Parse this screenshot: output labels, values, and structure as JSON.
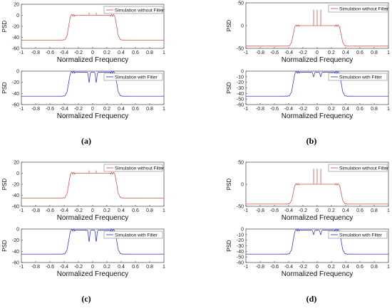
{
  "figure": {
    "captions": [
      "(a)",
      "(b)",
      "(c)",
      "(d)"
    ]
  },
  "chart_data": [
    {
      "panel": "a-top",
      "type": "line",
      "xlabel": "Normalized Frequency",
      "ylabel": "PSD",
      "xlim": [
        -1,
        1
      ],
      "ylim": [
        -60,
        20
      ],
      "xticks": [
        "-1",
        "-0.8",
        "-0.6",
        "-0.4",
        "-0.2",
        "0",
        "0.2",
        "0.4",
        "0.6",
        "0.8",
        "1"
      ],
      "yticks": [
        "20",
        "0",
        "-20",
        "-40",
        "-60"
      ],
      "legend": "top-right",
      "series": [
        {
          "name": "Simulation without Filter",
          "color": "#d9534f",
          "floor": -45,
          "plateau": 0,
          "edge": 0.3,
          "notch": false,
          "tones": [
            -0.05,
            0.05
          ],
          "tone_peak": 5
        }
      ]
    },
    {
      "panel": "a-bottom",
      "type": "line",
      "xlabel": "Normalized Frequency",
      "ylabel": "PSD",
      "xlim": [
        -1,
        1
      ],
      "ylim": [
        -60,
        0
      ],
      "xticks": [
        "-1",
        "-0.8",
        "-0.6",
        "-0.4",
        "-0.2",
        "0",
        "0.2",
        "0.4",
        "0.6",
        "0.8",
        "1"
      ],
      "yticks": [
        "0",
        "-20",
        "-40",
        "-60"
      ],
      "legend": "top-right",
      "series": [
        {
          "name": "Simulation with Filter",
          "color": "#3a3ad6",
          "floor": -45,
          "plateau": -2,
          "edge": 0.3,
          "notch": true,
          "notch_depth": -20,
          "tones": [],
          "tone_peak": 0
        }
      ]
    },
    {
      "panel": "b-top",
      "type": "line",
      "xlabel": "Normalized Frequency",
      "ylabel": "PSD",
      "xlim": [
        -1,
        1
      ],
      "ylim": [
        -50,
        50
      ],
      "xticks": [
        "-1",
        "-0.8",
        "-0.6",
        "-0.4",
        "-0.2",
        "0",
        "0.2",
        "0.4",
        "0.6",
        "0.8",
        "1"
      ],
      "yticks": [
        "50",
        "0",
        "-50"
      ],
      "legend": "top-right",
      "series": [
        {
          "name": "Simulation without Filter",
          "color": "#d9534f",
          "floor": -45,
          "plateau": 0,
          "edge": 0.3,
          "notch": false,
          "tones": [
            -0.05,
            0,
            0.05
          ],
          "tone_peak": 35
        }
      ]
    },
    {
      "panel": "b-bottom",
      "type": "line",
      "xlabel": "Normalized Frequency",
      "ylabel": "PSD",
      "xlim": [
        -1,
        1
      ],
      "ylim": [
        -60,
        0
      ],
      "xticks": [
        "-1",
        "-0.8",
        "-0.6",
        "-0.4",
        "-0.2",
        "0",
        "0.2",
        "0.4",
        "0.6",
        "0.8",
        "1"
      ],
      "yticks": [
        "0",
        "-10",
        "-20",
        "-30",
        "-40",
        "-50",
        "-60"
      ],
      "legend": "top-right",
      "series": [
        {
          "name": "Simulation with Filter",
          "color": "#3a3ad6",
          "floor": -45,
          "plateau": -2,
          "edge": 0.3,
          "notch": true,
          "notch_depth": -10,
          "tones": [],
          "tone_peak": 0
        }
      ]
    },
    {
      "panel": "c-top",
      "type": "line",
      "xlabel": "Normalized Frequency",
      "ylabel": "PSD",
      "xlim": [
        -1,
        1
      ],
      "ylim": [
        -60,
        20
      ],
      "xticks": [
        "-1",
        "-0.8",
        "-0.6",
        "-0.4",
        "-0.2",
        "0",
        "0.2",
        "0.4",
        "0.6",
        "0.8",
        "1"
      ],
      "yticks": [
        "20",
        "0",
        "-20",
        "-40",
        "-60"
      ],
      "legend": "top-right",
      "series": [
        {
          "name": "Simulation without Filter",
          "color": "#d9534f",
          "floor": -45,
          "plateau": 0,
          "edge": 0.3,
          "notch": false,
          "tones": [
            -0.05,
            0.05
          ],
          "tone_peak": 5
        }
      ]
    },
    {
      "panel": "c-bottom",
      "type": "line",
      "xlabel": "Normalized Frequency",
      "ylabel": "PSD",
      "xlim": [
        -1,
        1
      ],
      "ylim": [
        -60,
        0
      ],
      "xticks": [
        "-1",
        "-0.8",
        "-0.6",
        "-0.4",
        "-0.2",
        "0",
        "0.2",
        "0.4",
        "0.6",
        "0.8",
        "1"
      ],
      "yticks": [
        "0",
        "-20",
        "-40",
        "-60"
      ],
      "legend": "top-right",
      "series": [
        {
          "name": "Simulation with Filter",
          "color": "#3a3ad6",
          "floor": -45,
          "plateau": -2,
          "edge": 0.3,
          "notch": true,
          "notch_depth": -22,
          "tones": [],
          "tone_peak": 0
        }
      ]
    },
    {
      "panel": "d-top",
      "type": "line",
      "xlabel": "Normalized Frequency",
      "ylabel": "PSD",
      "xlim": [
        -1,
        1
      ],
      "ylim": [
        -50,
        50
      ],
      "xticks": [
        "-1",
        "-0.8",
        "-0.6",
        "-0.4",
        "-0.2",
        "0",
        "0.2",
        "0.4",
        "0.6",
        "0.8",
        "1"
      ],
      "yticks": [
        "50",
        "0",
        "-50"
      ],
      "legend": "top-right",
      "series": [
        {
          "name": "Simulation without Filter",
          "color": "#d9534f",
          "floor": -45,
          "plateau": 0,
          "edge": 0.3,
          "notch": false,
          "tones": [
            -0.05,
            0,
            0.05
          ],
          "tone_peak": 35
        }
      ]
    },
    {
      "panel": "d-bottom",
      "type": "line",
      "xlabel": "Normalized Frequency",
      "ylabel": "PSD",
      "xlim": [
        -1,
        1
      ],
      "ylim": [
        -60,
        0
      ],
      "xticks": [
        "-1",
        "-0.8",
        "-0.6",
        "-0.4",
        "-0.2",
        "0",
        "0.2",
        "0.4",
        "0.6",
        "0.8",
        "1"
      ],
      "yticks": [
        "0",
        "-10",
        "-20",
        "-30",
        "-40",
        "-50",
        "-60"
      ],
      "legend": "top-right",
      "series": [
        {
          "name": "Simulation with Filter",
          "color": "#3a3ad6",
          "floor": -45,
          "plateau": -2,
          "edge": 0.3,
          "notch": true,
          "notch_depth": -10,
          "tones": [],
          "tone_peak": 0
        }
      ]
    }
  ]
}
